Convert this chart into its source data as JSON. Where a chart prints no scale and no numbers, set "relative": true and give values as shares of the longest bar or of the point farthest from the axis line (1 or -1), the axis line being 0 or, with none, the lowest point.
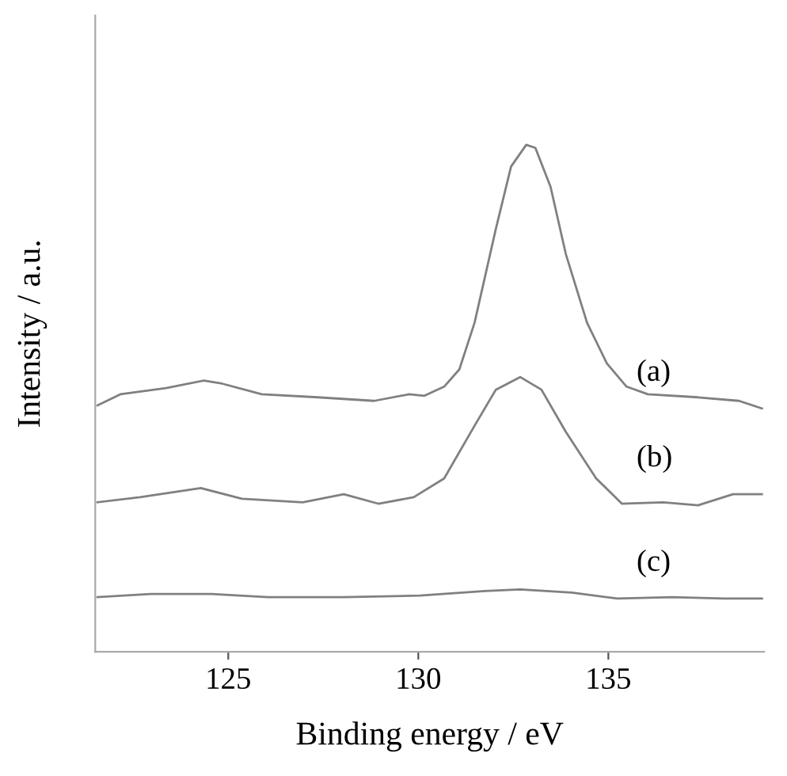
{
  "chart_data": {
    "type": "line",
    "xlabel": "Binding energy / eV",
    "ylabel": "Intensity / a.u.",
    "relative": true,
    "xlim": [
      121.5,
      139.1
    ],
    "xticks": [
      125,
      130,
      135
    ],
    "grid": false,
    "legend": false,
    "marker": "none",
    "line_style": "solid",
    "series": [
      {
        "name": "(a)",
        "color": "#808080",
        "x": [
          121.56,
          122.16,
          123.36,
          124.36,
          124.84,
          125.88,
          127.36,
          128.84,
          129.76,
          130.16,
          130.68,
          131.08,
          131.48,
          132.04,
          132.44,
          132.84,
          133.08,
          133.48,
          133.88,
          134.44,
          134.96,
          135.48,
          136.04,
          137.36,
          138.44,
          139.04
        ],
        "values": [
          0.486,
          0.508,
          0.52,
          0.535,
          0.529,
          0.508,
          0.502,
          0.495,
          0.508,
          0.505,
          0.523,
          0.557,
          0.649,
          0.834,
          0.957,
          1.0,
          0.994,
          0.917,
          0.785,
          0.649,
          0.569,
          0.523,
          0.508,
          0.502,
          0.495,
          0.48
        ]
      },
      {
        "name": "(b)",
        "color": "#808080",
        "x": [
          121.56,
          122.68,
          124.28,
          125.36,
          126.96,
          128.04,
          128.96,
          129.88,
          130.68,
          131.48,
          132.04,
          132.68,
          133.24,
          133.88,
          134.68,
          135.36,
          136.44,
          137.36,
          138.28,
          139.04
        ],
        "values": [
          0.295,
          0.305,
          0.323,
          0.302,
          0.295,
          0.311,
          0.292,
          0.305,
          0.342,
          0.446,
          0.517,
          0.542,
          0.517,
          0.434,
          0.342,
          0.292,
          0.295,
          0.289,
          0.311,
          0.311
        ]
      },
      {
        "name": "(c)",
        "color": "#808080",
        "x": [
          121.56,
          122.96,
          124.56,
          126.04,
          128.04,
          130.04,
          131.76,
          132.68,
          134.04,
          135.24,
          136.68,
          138.04,
          139.04
        ],
        "values": [
          0.108,
          0.114,
          0.114,
          0.108,
          0.108,
          0.111,
          0.12,
          0.123,
          0.117,
          0.105,
          0.108,
          0.105,
          0.105
        ]
      }
    ]
  }
}
